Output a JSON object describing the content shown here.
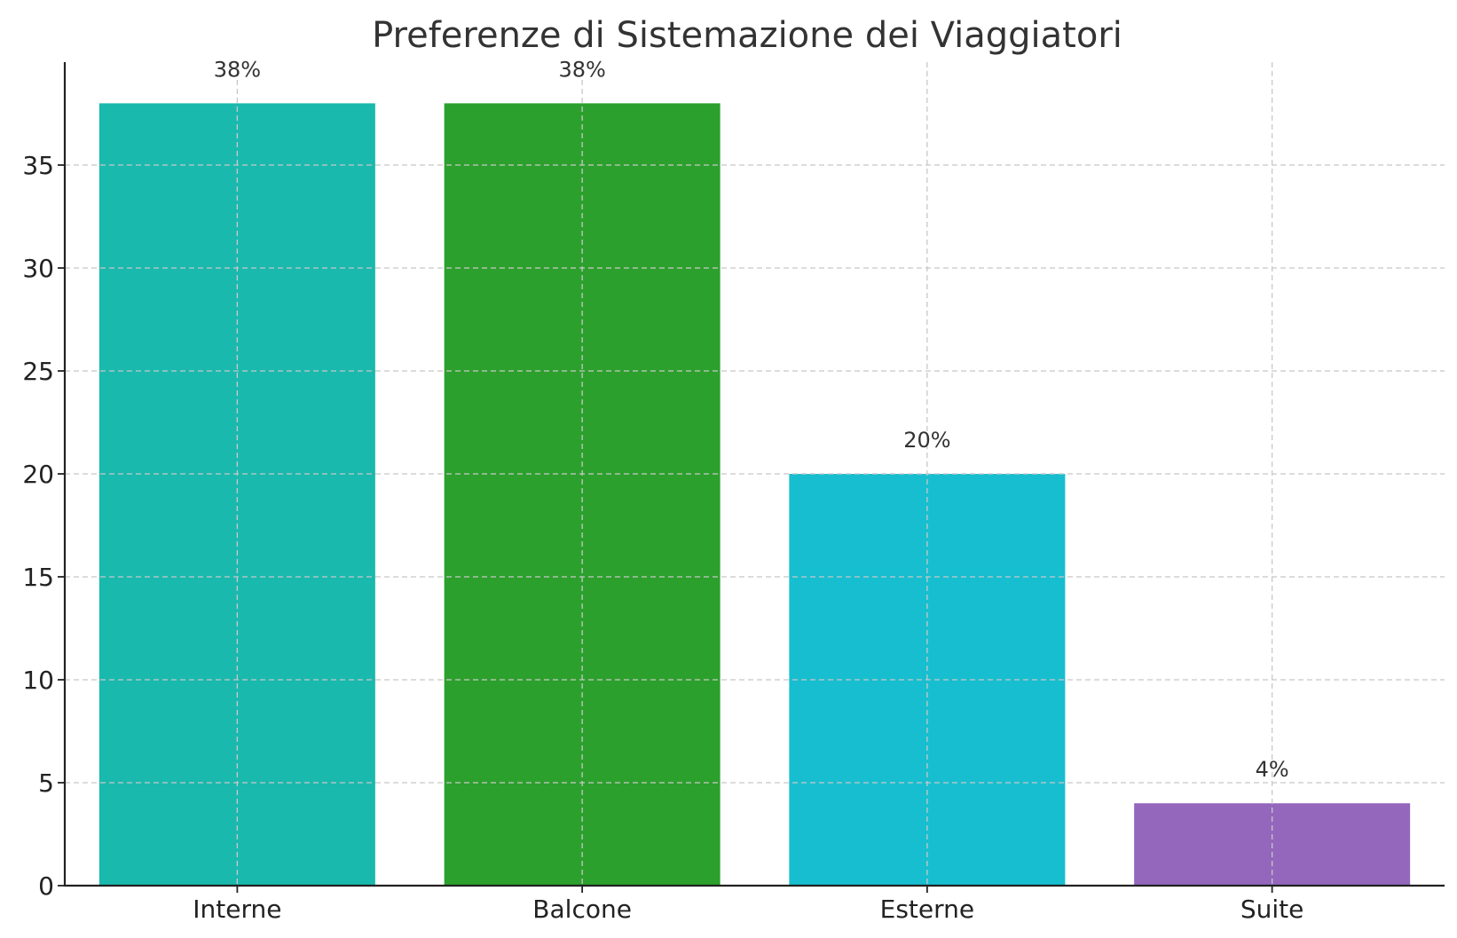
{
  "chart_data": {
    "type": "bar",
    "title": "Preferenze di Sistemazione dei Viaggiatori",
    "xlabel": "",
    "ylabel": "",
    "categories": [
      "Interne",
      "Balcone",
      "Esterne",
      "Suite"
    ],
    "values": [
      38,
      38,
      20,
      4
    ],
    "data_labels": [
      "38%",
      "38%",
      "20%",
      "4%"
    ],
    "colors": [
      "#1ab9ad",
      "#2ca02c",
      "#17becf",
      "#9467bd"
    ],
    "ylim": [
      0,
      40
    ],
    "yticks": [
      0,
      5,
      10,
      15,
      20,
      25,
      30,
      35
    ],
    "grid": true
  }
}
